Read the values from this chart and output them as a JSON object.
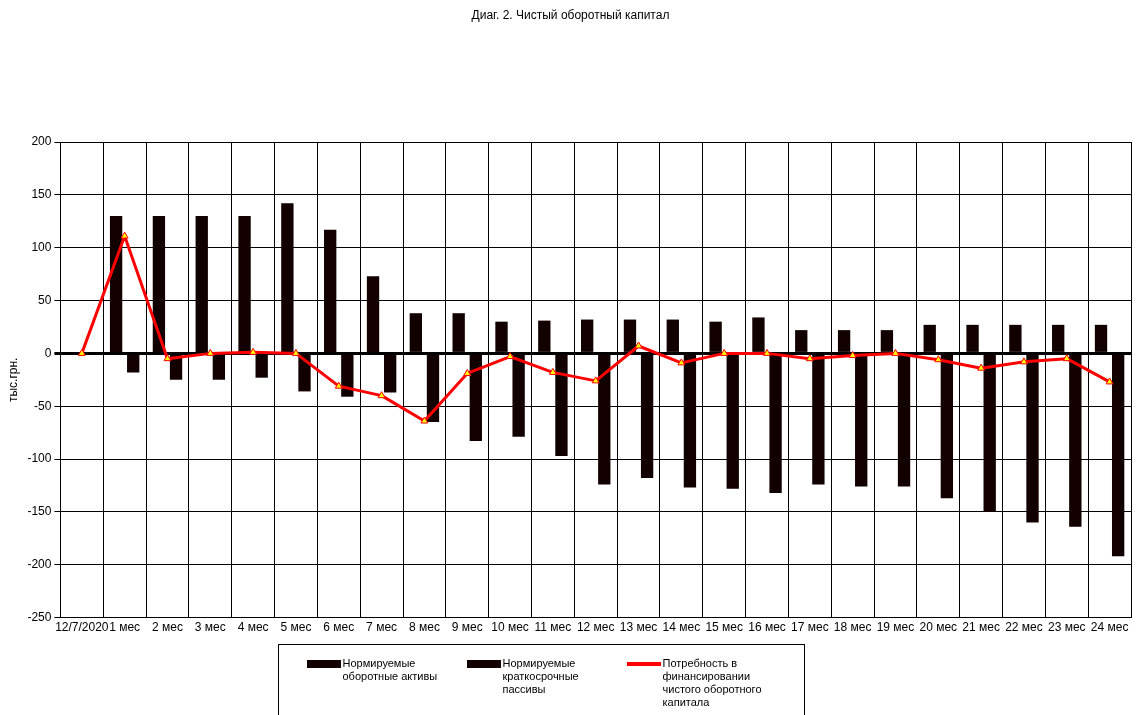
{
  "chart_data": {
    "type": "bar",
    "title": "Диаг. 2. Чистый оборотный капитал",
    "ylabel": "тыс.грн.",
    "categories": [
      "12/7/2020",
      "1 мес",
      "2 мес",
      "3 мес",
      "4 мес",
      "5 мес",
      "6 мес",
      "7 мес",
      "8 мес",
      "9 мес",
      "10 мес",
      "11 мес",
      "12 мес",
      "13 мес",
      "14 мес",
      "15 мес",
      "16 мес",
      "17 мес",
      "18 мес",
      "19 мес",
      "20 мес",
      "21 мес",
      "22 мес",
      "23 мес",
      "24 мес"
    ],
    "series": [
      {
        "name": "Нормируемые оборотные активы",
        "color": "#120000",
        "values": [
          0,
          130,
          130,
          130,
          130,
          142,
          117,
          73,
          38,
          38,
          30,
          31,
          32,
          32,
          32,
          30,
          34,
          22,
          22,
          22,
          27,
          27,
          27,
          27,
          27
        ]
      },
      {
        "name": "Нормируемые краткосрочные пассивы",
        "color": "#120000",
        "values": [
          0,
          -18,
          -25,
          -25,
          -23,
          -36,
          -41,
          -37,
          -65,
          -83,
          -79,
          -97,
          -124,
          -118,
          -127,
          -128,
          -132,
          -124,
          -126,
          -126,
          -137,
          -150,
          -160,
          -164,
          -192
        ]
      },
      {
        "name": "Потребность в финансировании чистого оборотного капитала",
        "type": "line",
        "color": "#ff0000",
        "marker": "triangle",
        "values": [
          0,
          111,
          -5,
          0,
          1,
          0,
          -31,
          -40,
          -64,
          -19,
          -3,
          -18,
          -26,
          7,
          -9,
          0,
          0,
          -5,
          -2,
          0,
          -6,
          -14,
          -8,
          -5,
          -27
        ]
      }
    ],
    "ylim": [
      -250,
      200
    ],
    "yticks": [
      -250,
      -200,
      -150,
      -100,
      -50,
      0,
      50,
      100,
      150,
      200
    ],
    "grid": true,
    "legend": "bottom"
  }
}
